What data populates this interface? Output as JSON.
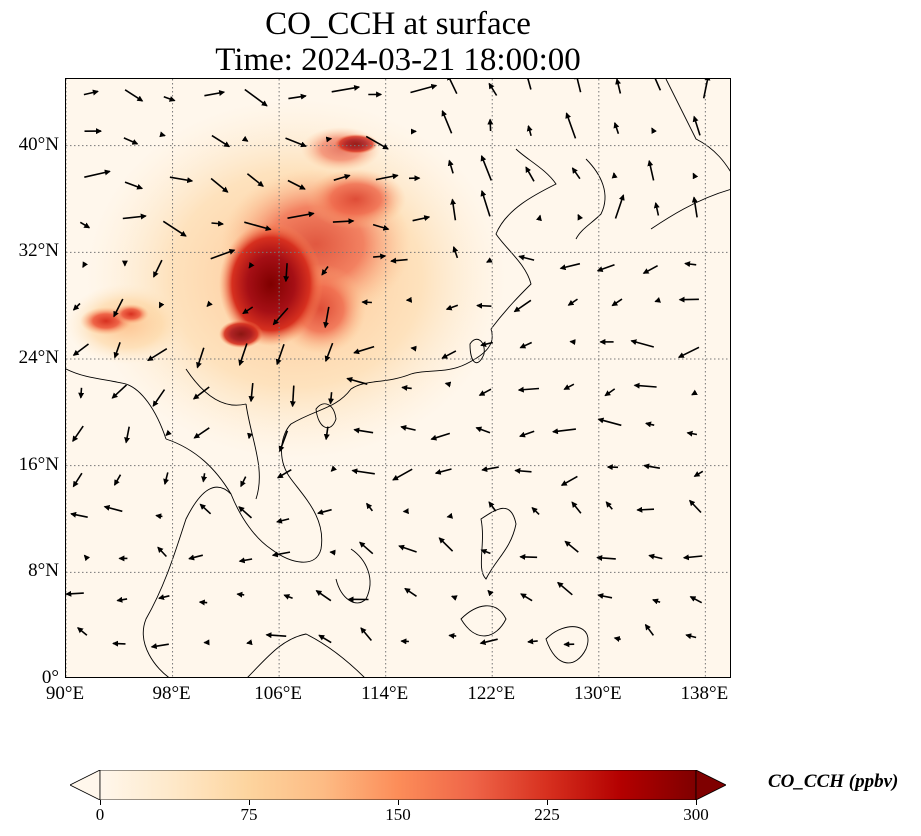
{
  "title": {
    "line1": "CO_CCH at surface",
    "line2": "Time: 2024-03-21 18:00:00"
  },
  "map": {
    "extent": {
      "lon_min": 90,
      "lon_max": 140,
      "lat_min": 0,
      "lat_max": 45
    },
    "gridlines": "dotted grey",
    "lon_ticks": [
      {
        "value": 90,
        "label": "90°E"
      },
      {
        "value": 98,
        "label": "98°E"
      },
      {
        "value": 106,
        "label": "106°E"
      },
      {
        "value": 114,
        "label": "114°E"
      },
      {
        "value": 122,
        "label": "122°E"
      },
      {
        "value": 130,
        "label": "130°E"
      },
      {
        "value": 138,
        "label": "138°E"
      }
    ],
    "lat_ticks": [
      {
        "value": 0,
        "label": "0°"
      },
      {
        "value": 8,
        "label": "8°N"
      },
      {
        "value": 16,
        "label": "16°N"
      },
      {
        "value": 24,
        "label": "24°N"
      },
      {
        "value": 32,
        "label": "32°N"
      },
      {
        "value": 40,
        "label": "40°N"
      }
    ],
    "background_color": "#fff7ec",
    "coastline_color": "#000000",
    "wind_vector_color": "#000000"
  },
  "colorbar": {
    "title": "CO_CCH (ppbv)",
    "min": 0,
    "max": 300,
    "extend": "both",
    "colormap": "OrRd",
    "ticks": [
      {
        "value": 0,
        "label": "0"
      },
      {
        "value": 75,
        "label": "75"
      },
      {
        "value": 150,
        "label": "150"
      },
      {
        "value": 225,
        "label": "225"
      },
      {
        "value": 300,
        "label": "300"
      }
    ],
    "stops": [
      "#fff7ec",
      "#fee8c8",
      "#fdd49e",
      "#fdbb84",
      "#fc8d59",
      "#ef6548",
      "#d7301f",
      "#b30000",
      "#7f0000"
    ]
  }
}
